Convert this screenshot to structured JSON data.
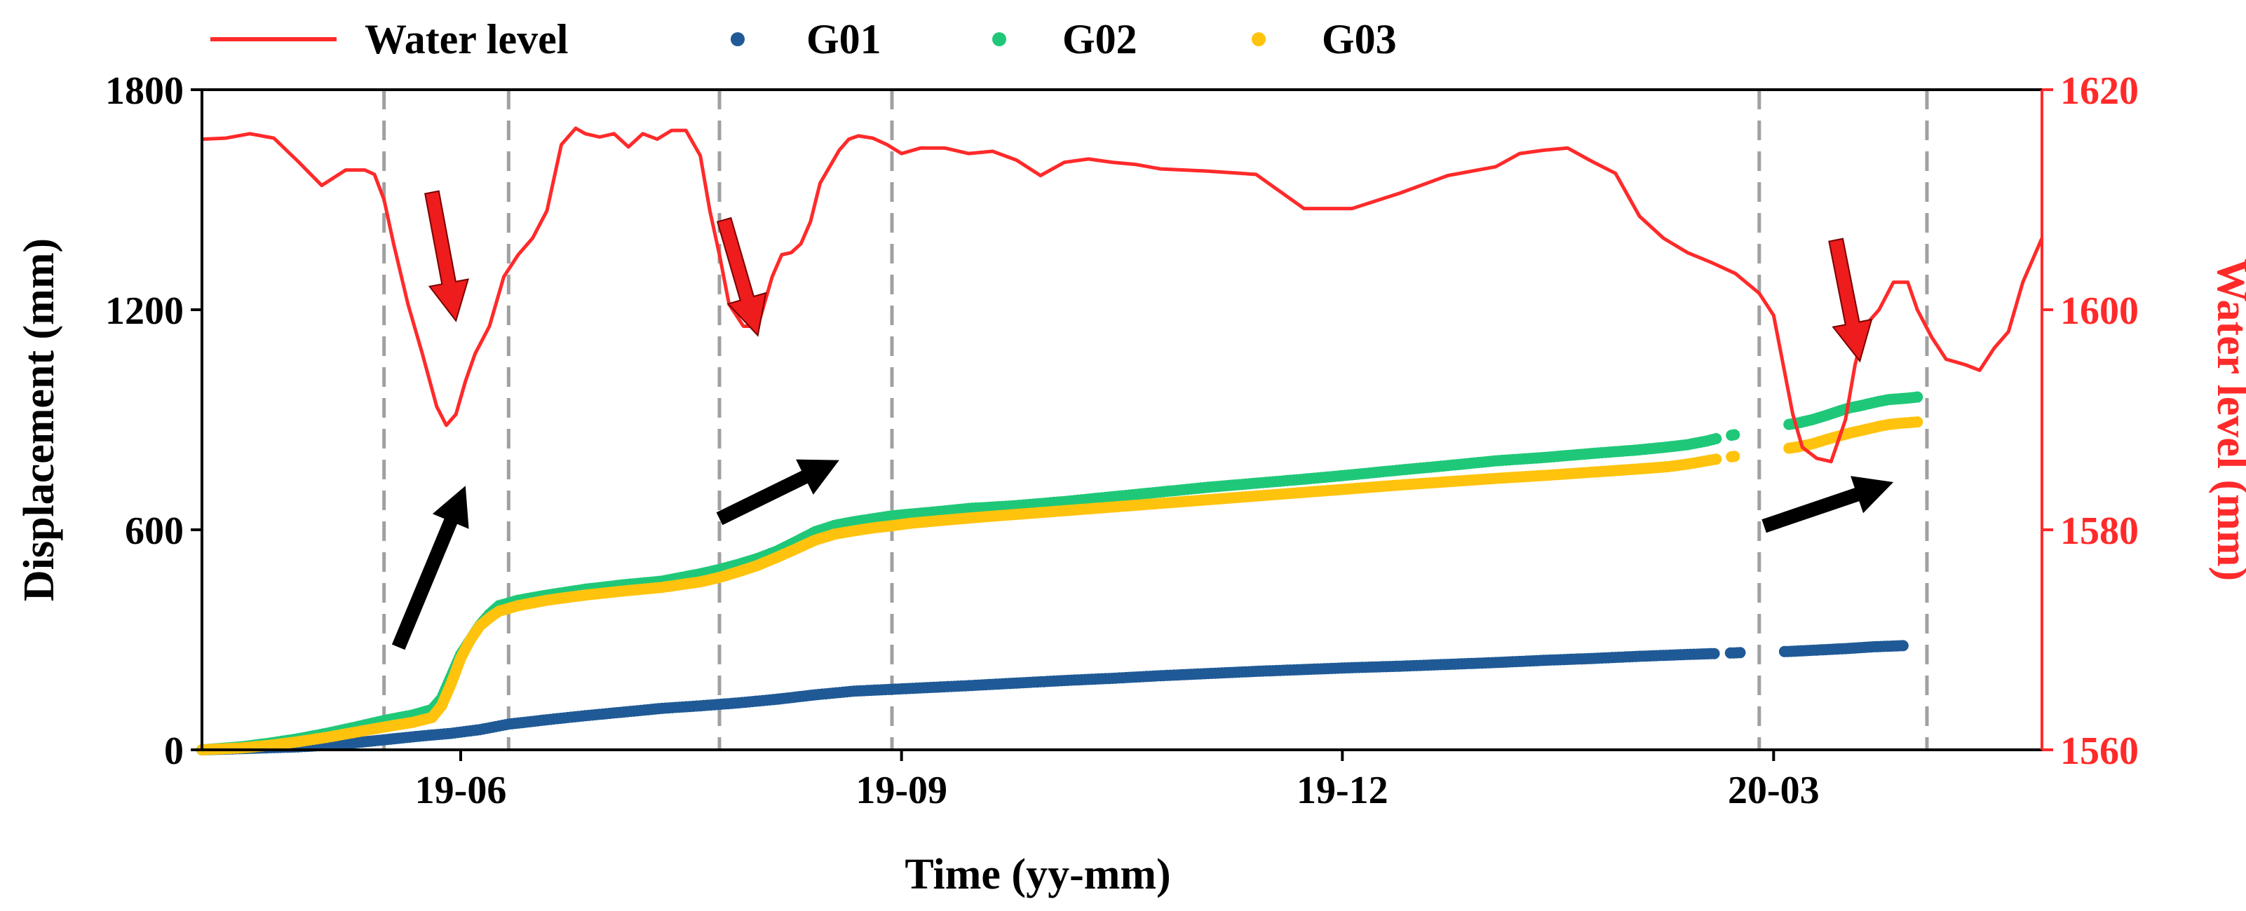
{
  "chart_data": {
    "type": "line+scatter",
    "title": "",
    "xlabel": "Time (yy-mm)",
    "ylabel_left": "Displacement (mm)",
    "ylabel_right": "Water level (mm)",
    "xlim": [
      0,
      384
    ],
    "ylim_left": [
      0,
      1800
    ],
    "ylim_right": [
      1560,
      1620
    ],
    "x_ticks": [
      {
        "x": 54,
        "label": "19-06"
      },
      {
        "x": 146,
        "label": "19-09"
      },
      {
        "x": 238,
        "label": "19-12"
      },
      {
        "x": 328,
        "label": "20-03"
      }
    ],
    "y_left_ticks": [
      {
        "v": 0,
        "label": "0"
      },
      {
        "v": 600,
        "label": "600"
      },
      {
        "v": 1200,
        "label": "1200"
      },
      {
        "v": 1800,
        "label": "1800"
      }
    ],
    "y_right_ticks": [
      {
        "v": 1560,
        "label": "1560"
      },
      {
        "v": 1580,
        "label": "1580"
      },
      {
        "v": 1600,
        "label": "1600"
      },
      {
        "v": 1620,
        "label": "1620"
      }
    ],
    "legend": {
      "position": "top",
      "entries": [
        {
          "name": "Water level",
          "color": "#ff2a2a",
          "marker": "line"
        },
        {
          "name": "G01",
          "color": "#1f5a96",
          "marker": "dot"
        },
        {
          "name": "G02",
          "color": "#1fc878",
          "marker": "dot"
        },
        {
          "name": "G03",
          "color": "#ffc30e",
          "marker": "dot"
        }
      ]
    },
    "vertical_dashed_lines_x": [
      38,
      64,
      108,
      144,
      325,
      360
    ],
    "water_level": {
      "name": "Water level",
      "axis": "right",
      "color": "#ff2a2a",
      "x": [
        0,
        5,
        10,
        15,
        20,
        25,
        30,
        34,
        36,
        38,
        40,
        43,
        46,
        49,
        51,
        53,
        55,
        57,
        60,
        63,
        66,
        69,
        72,
        75,
        78,
        80,
        83,
        86,
        89,
        92,
        95,
        98,
        101,
        104,
        106,
        108,
        110,
        113,
        116,
        119,
        121,
        123,
        125,
        127,
        129,
        131,
        133,
        135,
        137,
        140,
        143,
        146,
        150,
        155,
        160,
        165,
        170,
        175,
        180,
        185,
        190,
        195,
        200,
        210,
        220,
        230,
        240,
        250,
        260,
        270,
        275,
        280,
        285,
        290,
        295,
        300,
        305,
        310,
        315,
        320,
        325,
        328,
        330,
        332,
        334,
        337,
        340,
        343,
        345,
        347,
        350,
        353,
        356,
        358,
        361,
        364,
        368,
        371,
        374,
        377,
        380,
        384
      ],
      "values": [
        1615.5,
        1615.6,
        1616.0,
        1615.6,
        1613.5,
        1611.3,
        1612.7,
        1612.7,
        1612.3,
        1610.0,
        1606.0,
        1600.5,
        1596.0,
        1591.2,
        1589.5,
        1590.5,
        1593.5,
        1596.0,
        1598.5,
        1603.0,
        1605.0,
        1606.5,
        1609.0,
        1615.0,
        1616.5,
        1616.0,
        1615.7,
        1616.0,
        1614.8,
        1616.0,
        1615.5,
        1616.3,
        1616.3,
        1614.0,
        1609.0,
        1605.0,
        1600.5,
        1598.5,
        1598.5,
        1603.0,
        1605.0,
        1605.2,
        1606.0,
        1608.0,
        1611.5,
        1613.0,
        1614.5,
        1615.5,
        1615.8,
        1615.6,
        1615.0,
        1614.2,
        1614.7,
        1614.7,
        1614.2,
        1614.4,
        1613.6,
        1612.2,
        1613.4,
        1613.7,
        1613.4,
        1613.2,
        1612.8,
        1612.6,
        1612.3,
        1609.2,
        1609.2,
        1610.6,
        1612.2,
        1613.0,
        1614.2,
        1614.5,
        1614.7,
        1613.5,
        1612.4,
        1608.5,
        1606.5,
        1605.2,
        1604.3,
        1603.3,
        1601.5,
        1599.5,
        1595.0,
        1590.5,
        1587.5,
        1586.5,
        1586.2,
        1590.0,
        1595.0,
        1598.5,
        1600.0,
        1602.5,
        1602.5,
        1600.0,
        1597.5,
        1595.5,
        1595.0,
        1594.5,
        1596.5,
        1598.0,
        1602.5,
        1606.5
      ]
    },
    "series": [
      {
        "name": "G01",
        "axis": "left",
        "color": "#1f5a96",
        "points": [
          [
            0,
            0
          ],
          [
            10,
            4
          ],
          [
            20,
            8
          ],
          [
            28,
            14
          ],
          [
            34,
            22
          ],
          [
            40,
            30
          ],
          [
            46,
            38
          ],
          [
            52,
            45
          ],
          [
            58,
            55
          ],
          [
            64,
            70
          ],
          [
            72,
            82
          ],
          [
            80,
            93
          ],
          [
            88,
            103
          ],
          [
            96,
            113
          ],
          [
            104,
            120
          ],
          [
            112,
            128
          ],
          [
            120,
            138
          ],
          [
            128,
            150
          ],
          [
            136,
            160
          ],
          [
            144,
            165
          ],
          [
            152,
            170
          ],
          [
            160,
            175
          ],
          [
            170,
            182
          ],
          [
            180,
            189
          ],
          [
            190,
            195
          ],
          [
            200,
            202
          ],
          [
            210,
            208
          ],
          [
            220,
            214
          ],
          [
            230,
            219
          ],
          [
            240,
            224
          ],
          [
            250,
            228
          ],
          [
            260,
            233
          ],
          [
            270,
            238
          ],
          [
            280,
            244
          ],
          [
            290,
            249
          ],
          [
            300,
            255
          ],
          [
            310,
            260
          ],
          [
            317,
            263
          ],
          [
            323,
            266
          ],
          [
            331,
            268
          ],
          [
            337,
            272
          ],
          [
            343,
            276
          ],
          [
            349,
            281
          ],
          [
            355,
            284
          ]
        ],
        "gaps": [
          [
            316,
            319
          ],
          [
            321,
            330
          ]
        ]
      },
      {
        "name": "G02",
        "axis": "left",
        "color": "#1fc878",
        "points": [
          [
            0,
            0
          ],
          [
            8,
            8
          ],
          [
            14,
            18
          ],
          [
            20,
            30
          ],
          [
            26,
            45
          ],
          [
            32,
            62
          ],
          [
            38,
            80
          ],
          [
            44,
            95
          ],
          [
            48,
            110
          ],
          [
            50,
            140
          ],
          [
            52,
            200
          ],
          [
            54,
            260
          ],
          [
            56,
            300
          ],
          [
            58,
            340
          ],
          [
            60,
            370
          ],
          [
            62,
            393
          ],
          [
            66,
            408
          ],
          [
            72,
            422
          ],
          [
            80,
            438
          ],
          [
            88,
            450
          ],
          [
            96,
            460
          ],
          [
            104,
            480
          ],
          [
            108,
            492
          ],
          [
            112,
            506
          ],
          [
            116,
            522
          ],
          [
            120,
            542
          ],
          [
            124,
            568
          ],
          [
            128,
            595
          ],
          [
            132,
            612
          ],
          [
            136,
            622
          ],
          [
            140,
            630
          ],
          [
            144,
            638
          ],
          [
            148,
            643
          ],
          [
            154,
            650
          ],
          [
            160,
            658
          ],
          [
            170,
            666
          ],
          [
            180,
            677
          ],
          [
            190,
            690
          ],
          [
            200,
            703
          ],
          [
            210,
            716
          ],
          [
            220,
            727
          ],
          [
            230,
            738
          ],
          [
            240,
            750
          ],
          [
            250,
            763
          ],
          [
            260,
            775
          ],
          [
            270,
            788
          ],
          [
            280,
            797
          ],
          [
            290,
            808
          ],
          [
            300,
            818
          ],
          [
            306,
            826
          ],
          [
            310,
            832
          ],
          [
            314,
            842
          ],
          [
            318,
            855
          ],
          [
            321,
            862
          ],
          [
            324,
            872
          ],
          [
            327,
            878
          ],
          [
            330,
            885
          ],
          [
            333,
            891
          ],
          [
            336,
            900
          ],
          [
            339,
            912
          ],
          [
            342,
            925
          ],
          [
            344,
            933
          ],
          [
            346,
            938
          ],
          [
            348,
            944
          ],
          [
            350,
            950
          ],
          [
            352,
            955
          ],
          [
            354,
            957
          ],
          [
            356,
            959
          ],
          [
            358,
            962
          ]
        ],
        "gaps": [
          [
            316,
            319
          ],
          [
            320,
            331
          ]
        ]
      },
      {
        "name": "G03",
        "axis": "left",
        "color": "#ffc30e",
        "points": [
          [
            0,
            0
          ],
          [
            8,
            5
          ],
          [
            14,
            12
          ],
          [
            20,
            22
          ],
          [
            26,
            34
          ],
          [
            32,
            48
          ],
          [
            38,
            62
          ],
          [
            44,
            75
          ],
          [
            48,
            88
          ],
          [
            50,
            120
          ],
          [
            52,
            180
          ],
          [
            54,
            250
          ],
          [
            56,
            300
          ],
          [
            58,
            338
          ],
          [
            60,
            360
          ],
          [
            62,
            378
          ],
          [
            66,
            393
          ],
          [
            72,
            408
          ],
          [
            80,
            422
          ],
          [
            88,
            433
          ],
          [
            96,
            443
          ],
          [
            104,
            458
          ],
          [
            108,
            470
          ],
          [
            112,
            486
          ],
          [
            116,
            503
          ],
          [
            120,
            525
          ],
          [
            124,
            548
          ],
          [
            128,
            572
          ],
          [
            132,
            588
          ],
          [
            136,
            597
          ],
          [
            140,
            605
          ],
          [
            144,
            611
          ],
          [
            148,
            618
          ],
          [
            154,
            625
          ],
          [
            160,
            632
          ],
          [
            170,
            642
          ],
          [
            180,
            652
          ],
          [
            190,
            662
          ],
          [
            200,
            672
          ],
          [
            210,
            682
          ],
          [
            220,
            692
          ],
          [
            230,
            702
          ],
          [
            240,
            712
          ],
          [
            250,
            722
          ],
          [
            260,
            731
          ],
          [
            270,
            740
          ],
          [
            280,
            748
          ],
          [
            290,
            757
          ],
          [
            300,
            766
          ],
          [
            306,
            772
          ],
          [
            310,
            779
          ],
          [
            314,
            788
          ],
          [
            318,
            797
          ],
          [
            321,
            802
          ],
          [
            324,
            808
          ],
          [
            327,
            814
          ],
          [
            330,
            820
          ],
          [
            333,
            826
          ],
          [
            336,
            834
          ],
          [
            339,
            846
          ],
          [
            342,
            857
          ],
          [
            344,
            864
          ],
          [
            346,
            870
          ],
          [
            348,
            876
          ],
          [
            350,
            882
          ],
          [
            352,
            887
          ],
          [
            354,
            890
          ],
          [
            356,
            892
          ],
          [
            358,
            894
          ]
        ],
        "gaps": [
          [
            316,
            319
          ],
          [
            320,
            331
          ]
        ]
      }
    ],
    "annotations": [
      {
        "type": "arrow",
        "color": "#ee1c1c",
        "from": [
          48,
          1520
        ],
        "to": [
          53,
          1170
        ]
      },
      {
        "type": "arrow",
        "color": "#ee1c1c",
        "from": [
          109,
          1445
        ],
        "to": [
          116,
          1130
        ]
      },
      {
        "type": "arrow",
        "color": "#ee1c1c",
        "from": [
          341,
          1390
        ],
        "to": [
          346,
          1060
        ]
      },
      {
        "type": "arrow",
        "color": "#000000",
        "from": [
          41,
          280
        ],
        "to": [
          55,
          720
        ]
      },
      {
        "type": "arrow",
        "color": "#000000",
        "from": [
          108,
          630
        ],
        "to": [
          133,
          790
        ]
      },
      {
        "type": "arrow",
        "color": "#000000",
        "from": [
          326,
          610
        ],
        "to": [
          353,
          730
        ]
      }
    ]
  }
}
